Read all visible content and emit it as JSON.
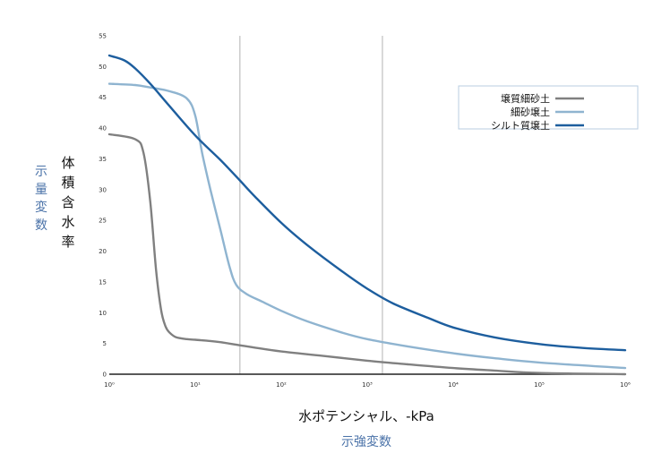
{
  "chart_data": {
    "type": "line",
    "x_scale": "log",
    "xlim": [
      1,
      1000000
    ],
    "ylim": [
      0,
      55
    ],
    "grid": false,
    "legend_position": "top-right",
    "x_ticks": [
      "10⁰",
      "10¹",
      "10²",
      "10³",
      "10⁴",
      "10⁵",
      "10⁶"
    ],
    "y_ticks": [
      "0",
      "5",
      "10",
      "15",
      "20",
      "25",
      "30",
      "35",
      "40",
      "45",
      "50",
      "55"
    ],
    "xlabel": "水ポテンシャル、-kPa",
    "ylabel": "体積含水率",
    "x_role_label": "示強変数",
    "y_role_label": "示量変数",
    "vertical_lines_x": [
      33,
      1500
    ],
    "vertical_line_color": "#cccccc",
    "series": [
      {
        "name": "壌質細砂土",
        "color": "#808080",
        "x": [
          1,
          2,
          2.5,
          3,
          3.5,
          4,
          4.5,
          5,
          6,
          8,
          10,
          15,
          20,
          33,
          50,
          100,
          300,
          1000,
          3000,
          10000,
          30000,
          100000,
          1000000
        ],
        "y": [
          39,
          38.2,
          36,
          28,
          17,
          10.5,
          7.8,
          6.8,
          6.0,
          5.7,
          5.6,
          5.4,
          5.2,
          4.7,
          4.3,
          3.7,
          3.0,
          2.2,
          1.6,
          1.0,
          0.6,
          0.2,
          0.0
        ]
      },
      {
        "name": "細砂壌土",
        "color": "#8fb4d0",
        "x": [
          1,
          2,
          3,
          5,
          8,
          10,
          12,
          15,
          20,
          25,
          30,
          40,
          60,
          100,
          200,
          500,
          1000,
          3000,
          10000,
          30000,
          100000,
          1000000
        ],
        "y": [
          47.2,
          47,
          46.6,
          46.0,
          44.8,
          42,
          36,
          30,
          23,
          17.5,
          14.5,
          13,
          11.8,
          10.3,
          8.6,
          6.8,
          5.7,
          4.5,
          3.4,
          2.6,
          1.9,
          1.0
        ]
      },
      {
        "name": "シルト質壌土",
        "color": "#1d5e9e",
        "x": [
          1,
          1.5,
          2,
          3,
          5,
          10,
          20,
          33,
          50,
          100,
          200,
          500,
          1000,
          2000,
          5000,
          10000,
          30000,
          100000,
          300000,
          1000000
        ],
        "y": [
          51.8,
          51.0,
          49.7,
          47.2,
          43.6,
          38.8,
          34.7,
          31.5,
          28.8,
          24.6,
          21.0,
          16.8,
          13.9,
          11.5,
          9.2,
          7.6,
          6.0,
          4.9,
          4.3,
          3.9
        ]
      }
    ]
  }
}
